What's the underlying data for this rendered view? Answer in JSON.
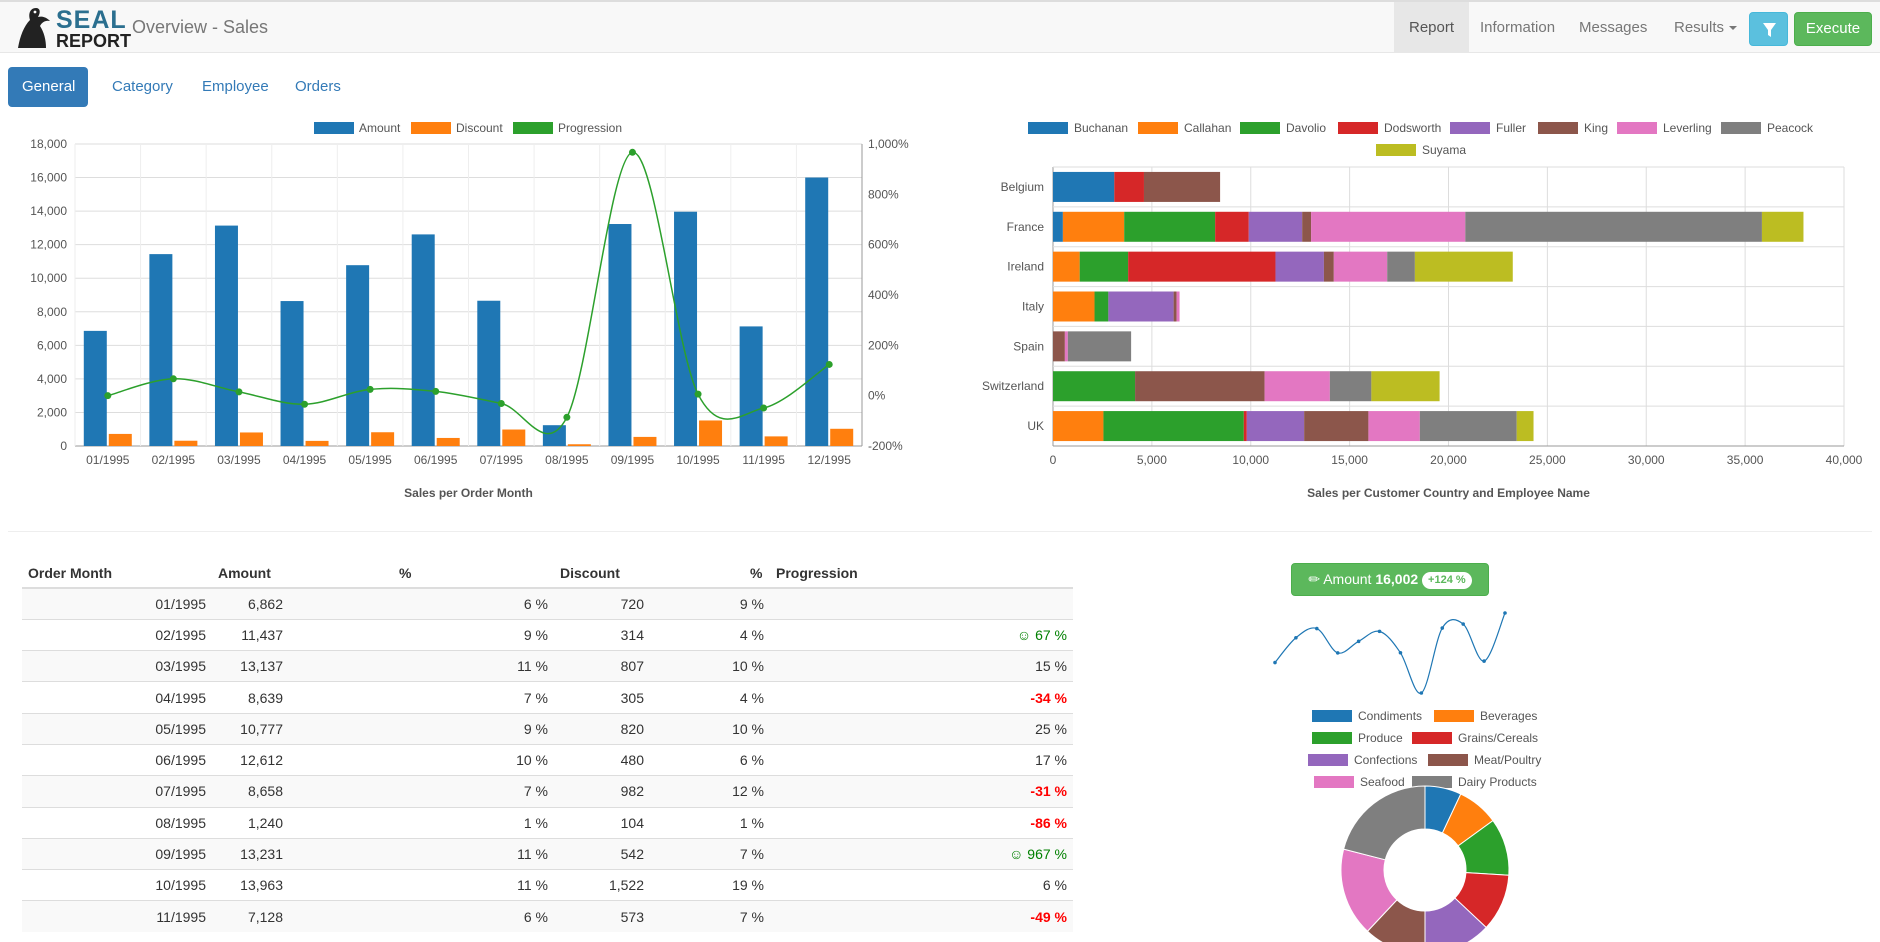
{
  "app": {
    "title": "Overview - Sales",
    "logo_top": "SEAL",
    "logo_bottom": "REPORT"
  },
  "nav": {
    "report": "Report",
    "information": "Information",
    "messages": "Messages",
    "results": "Results",
    "execute": "Execute"
  },
  "tabs": [
    "General",
    "Category",
    "Employee",
    "Orders"
  ],
  "colors": {
    "blue": "#1f77b4",
    "orange": "#ff7f0e",
    "green": "#2ca02c",
    "red": "#d62728",
    "purple": "#9467bd",
    "brown": "#8c564b",
    "pink": "#e377c2",
    "gray": "#7f7f7f",
    "olive": "#bcbd22"
  },
  "chart_data": [
    {
      "type": "bar",
      "title": "Sales per Order Month",
      "categories": [
        "01/1995",
        "02/1995",
        "03/1995",
        "04/1995",
        "05/1995",
        "06/1995",
        "07/1995",
        "08/1995",
        "09/1995",
        "10/1995",
        "11/1995",
        "12/1995"
      ],
      "series": [
        {
          "name": "Amount",
          "values": [
            6862,
            11437,
            13137,
            8639,
            10777,
            12612,
            8658,
            1240,
            13231,
            13963,
            7128,
            16002
          ]
        },
        {
          "name": "Discount",
          "values": [
            720,
            314,
            807,
            305,
            820,
            480,
            982,
            104,
            542,
            1522,
            573,
            1026
          ]
        },
        {
          "name": "Progression",
          "axis": "right",
          "type": "line",
          "values": [
            0,
            67,
            15,
            -34,
            25,
            17,
            -31,
            -86,
            967,
            6,
            -49,
            124
          ]
        }
      ],
      "ylim": [
        0,
        18000
      ],
      "yticks": [
        "0",
        "2,000",
        "4,000",
        "6,000",
        "8,000",
        "10,000",
        "12,000",
        "14,000",
        "16,000",
        "18,000"
      ],
      "y2lim": [
        -200,
        1000
      ],
      "y2ticks": [
        "-200%",
        "0%",
        "200%",
        "400%",
        "600%",
        "800%",
        "1,000%"
      ],
      "legend": "top-center"
    },
    {
      "type": "bar",
      "orientation": "horizontal",
      "stacked": true,
      "title": "Sales per Customer Country and Employee Name",
      "categories": [
        "Belgium",
        "France",
        "Ireland",
        "Italy",
        "Spain",
        "Switzerland",
        "UK"
      ],
      "series": [
        {
          "name": "Buchanan",
          "values": [
            3100,
            500,
            0,
            0,
            0,
            0,
            0
          ]
        },
        {
          "name": "Callahan",
          "values": [
            0,
            3100,
            1350,
            2100,
            0,
            0,
            2550
          ]
        },
        {
          "name": "Davolio",
          "values": [
            0,
            4600,
            2450,
            700,
            0,
            4150,
            7100
          ]
        },
        {
          "name": "Dodsworth",
          "values": [
            1500,
            1700,
            7450,
            0,
            0,
            0,
            150
          ]
        },
        {
          "name": "Fuller",
          "values": [
            0,
            2700,
            2450,
            3300,
            0,
            0,
            2900
          ]
        },
        {
          "name": "King",
          "values": [
            3850,
            450,
            500,
            150,
            600,
            6550,
            3250
          ]
        },
        {
          "name": "Leverling",
          "values": [
            0,
            7800,
            2700,
            150,
            150,
            3300,
            2600
          ]
        },
        {
          "name": "Peacock",
          "values": [
            0,
            15000,
            1400,
            0,
            3200,
            2100,
            4900
          ]
        },
        {
          "name": "Suyama",
          "values": [
            0,
            2100,
            4950,
            0,
            0,
            3450,
            850
          ]
        }
      ],
      "xlim": [
        0,
        40000
      ],
      "xticks": [
        "0",
        "5,000",
        "10,000",
        "15,000",
        "20,000",
        "25,000",
        "30,000",
        "35,000",
        "40,000"
      ],
      "legend": "top-center"
    },
    {
      "type": "line",
      "title": "",
      "series": [
        {
          "name": "Amount",
          "values": [
            6862,
            11437,
            13137,
            8639,
            10777,
            12612,
            8658,
            1240,
            13231,
            13963,
            7128,
            16002
          ]
        }
      ]
    },
    {
      "type": "pie",
      "donut": true,
      "title": "",
      "categories": [
        "Condiments",
        "Beverages",
        "Produce",
        "Grains/Cereals",
        "Confections",
        "Meat/Poultry",
        "Seafood",
        "Dairy Products"
      ],
      "values": [
        7,
        8,
        11,
        11,
        13,
        12,
        17,
        21
      ],
      "legend": "top"
    }
  ],
  "kpi": {
    "label": "Amount",
    "value": "16,002",
    "badge": "+124 %"
  },
  "table": {
    "headers": [
      "Order Month",
      "Amount",
      "%",
      "Discount",
      "%",
      "Progression"
    ],
    "rows": [
      [
        "01/1995",
        "6,862",
        "6 %",
        "720",
        "9 %",
        ""
      ],
      [
        "02/1995",
        "11,437",
        "9 %",
        "314",
        "4 %",
        "☺ 67 %"
      ],
      [
        "03/1995",
        "13,137",
        "11 %",
        "807",
        "10 %",
        "15 %"
      ],
      [
        "04/1995",
        "8,639",
        "7 %",
        "305",
        "4 %",
        "-34 %"
      ],
      [
        "05/1995",
        "10,777",
        "9 %",
        "820",
        "10 %",
        "25 %"
      ],
      [
        "06/1995",
        "12,612",
        "10 %",
        "480",
        "6 %",
        "17 %"
      ],
      [
        "07/1995",
        "8,658",
        "7 %",
        "982",
        "12 %",
        "-31 %"
      ],
      [
        "08/1995",
        "1,240",
        "1 %",
        "104",
        "1 %",
        "-86 %"
      ],
      [
        "09/1995",
        "13,231",
        "11 %",
        "542",
        "7 %",
        "☺ 967 %"
      ],
      [
        "10/1995",
        "13,963",
        "11 %",
        "1,522",
        "19 %",
        "6 %"
      ],
      [
        "11/1995",
        "7,128",
        "6 %",
        "573",
        "7 %",
        "-49 %"
      ]
    ],
    "row_styles": [
      "",
      "pos",
      "",
      "neg",
      "",
      "",
      "neg",
      "neg",
      "pos",
      "",
      "neg"
    ]
  }
}
